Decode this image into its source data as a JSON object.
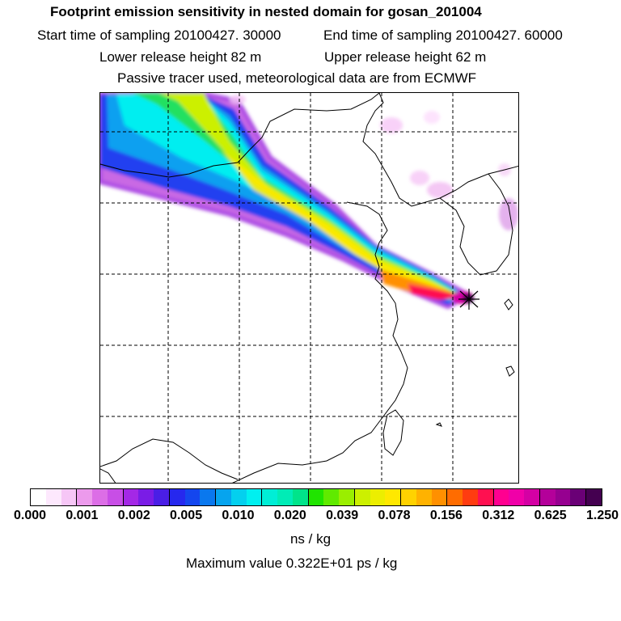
{
  "header": {
    "title": "Footprint emission sensitivity in nested domain for gosan_201004",
    "start_sampling": "Start time of sampling 20100427. 30000",
    "end_sampling": "End time of sampling 20100427. 60000",
    "lower_release": "Lower release height   82 m",
    "upper_release": "Upper release height   62 m",
    "tracer_info": "Passive tracer used, meteorological data are from ECMWF"
  },
  "colorbar": {
    "colors": [
      "#ffffff",
      "#fde8fd",
      "#f6c6f6",
      "#ec9aec",
      "#dc6ee6",
      "#c84ee6",
      "#a428e6",
      "#7a1ce6",
      "#4a1ee6",
      "#2628ee",
      "#1446ee",
      "#0a78ee",
      "#06a4ee",
      "#04d0ee",
      "#00f0f0",
      "#00eed6",
      "#00ecb6",
      "#00e48a",
      "#20e400",
      "#60ea00",
      "#9aee00",
      "#ccf000",
      "#ecee00",
      "#ffe800",
      "#ffd200",
      "#ffb200",
      "#ff9000",
      "#ff6c00",
      "#ff3c10",
      "#ff1050",
      "#ff0090",
      "#f000a8",
      "#d400a4",
      "#b4009a",
      "#960090",
      "#6a0076",
      "#440050"
    ],
    "tick_labels": [
      "0.000",
      "0.001",
      "0.002",
      "0.005",
      "0.010",
      "0.020",
      "0.039",
      "0.078",
      "0.156",
      "0.312",
      "0.625",
      "1.250"
    ],
    "unit": "ns / kg"
  },
  "max_value": "Maximum value  0.322E+01 ps / kg",
  "map": {
    "receptor_marker": "star-marker"
  }
}
